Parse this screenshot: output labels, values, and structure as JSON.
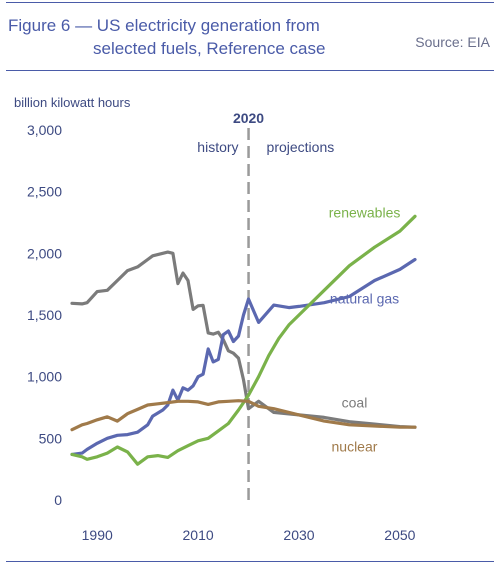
{
  "header": {
    "title_line1": "Figure 6 — US electricity generation from",
    "title_line2": "selected fuels, Reference case",
    "source": "Source: EIA"
  },
  "colors": {
    "accent": "#4a5ba8",
    "coal": "#7b7b7b",
    "natural_gas": "#5b68b0",
    "renewables": "#7ab24a",
    "nuclear": "#a07a4a",
    "divider": "#9a9a9a"
  },
  "chart_data": {
    "type": "line",
    "ylabel": "billion kilowatt hours",
    "ylim": [
      0,
      3000
    ],
    "yticks": [
      0,
      500,
      1000,
      1500,
      2000,
      2500,
      3000
    ],
    "ytick_labels": [
      "0",
      "500",
      "1,000",
      "1,500",
      "2,000",
      "2,500",
      "3,000"
    ],
    "xlim": [
      1985,
      2053
    ],
    "xticks": [
      1990,
      2010,
      2030,
      2050
    ],
    "xtick_labels": [
      "1990",
      "2010",
      "2030",
      "2050"
    ],
    "divider": {
      "x": 2020,
      "label": "2020",
      "left_label": "history",
      "right_label": "projections"
    },
    "grid": false,
    "series": [
      {
        "name": "coal",
        "color_key": "coal",
        "x": [
          1985,
          1987,
          1988,
          1990,
          1992,
          1994,
          1996,
          1998,
          2000,
          2001,
          2003,
          2004,
          2005,
          2006,
          2007,
          2008,
          2009,
          2010,
          2011,
          2012,
          2013,
          2014,
          2015,
          2016,
          2017,
          2018,
          2019,
          2020,
          2022,
          2025,
          2030,
          2035,
          2040,
          2045,
          2050,
          2053
        ],
        "values": [
          1595,
          1590,
          1600,
          1690,
          1700,
          1780,
          1860,
          1890,
          1950,
          1980,
          2000,
          2010,
          2000,
          1755,
          1840,
          1780,
          1545,
          1575,
          1578,
          1355,
          1345,
          1360,
          1300,
          1210,
          1190,
          1150,
          975,
          740,
          800,
          710,
          690,
          670,
          635,
          615,
          595,
          590
        ]
      },
      {
        "name": "natural gas",
        "color_key": "natural_gas",
        "x": [
          1985,
          1987,
          1988,
          1990,
          1992,
          1994,
          1996,
          1998,
          2000,
          2001,
          2003,
          2004,
          2005,
          2006,
          2007,
          2008,
          2009,
          2010,
          2011,
          2012,
          2013,
          2014,
          2015,
          2016,
          2017,
          2018,
          2019,
          2020,
          2022,
          2025,
          2028,
          2030,
          2035,
          2040,
          2045,
          2050,
          2053
        ],
        "values": [
          370,
          380,
          410,
          460,
          500,
          525,
          530,
          550,
          610,
          680,
          730,
          770,
          890,
          810,
          910,
          890,
          925,
          1000,
          1020,
          1225,
          1120,
          1140,
          1340,
          1370,
          1285,
          1330,
          1500,
          1630,
          1440,
          1580,
          1560,
          1570,
          1600,
          1650,
          1780,
          1870,
          1950
        ]
      },
      {
        "name": "renewables",
        "color_key": "renewables",
        "x": [
          1985,
          1987,
          1988,
          1990,
          1992,
          1994,
          1996,
          1998,
          2000,
          2002,
          2004,
          2006,
          2008,
          2010,
          2012,
          2014,
          2016,
          2018,
          2020,
          2022,
          2024,
          2026,
          2028,
          2030,
          2035,
          2040,
          2045,
          2050,
          2053
        ],
        "values": [
          370,
          350,
          330,
          350,
          380,
          430,
          390,
          290,
          350,
          360,
          345,
          400,
          440,
          480,
          500,
          560,
          620,
          730,
          850,
          1000,
          1170,
          1310,
          1420,
          1500,
          1700,
          1900,
          2050,
          2180,
          2300
        ]
      },
      {
        "name": "nuclear",
        "color_key": "nuclear",
        "x": [
          1985,
          1987,
          1988,
          1990,
          1992,
          1994,
          1996,
          1998,
          2000,
          2002,
          2004,
          2006,
          2008,
          2010,
          2012,
          2014,
          2016,
          2018,
          2020,
          2022,
          2025,
          2030,
          2035,
          2040,
          2045,
          2050,
          2053
        ],
        "values": [
          570,
          610,
          620,
          650,
          675,
          640,
          700,
          735,
          770,
          780,
          790,
          800,
          800,
          795,
          775,
          795,
          800,
          805,
          800,
          760,
          740,
          690,
          640,
          610,
          600,
          590,
          590
        ]
      }
    ],
    "annotations": [
      {
        "text": "renewables",
        "color_key": "renewables",
        "x": 2043,
        "y": 2290
      },
      {
        "text": "natural gas",
        "color_key": "natural_gas",
        "x": 2043,
        "y": 1595
      },
      {
        "text": "coal",
        "color_key": "coal",
        "x": 2041,
        "y": 750
      },
      {
        "text": "nuclear",
        "color_key": "nuclear",
        "x": 2041,
        "y": 395
      }
    ]
  }
}
